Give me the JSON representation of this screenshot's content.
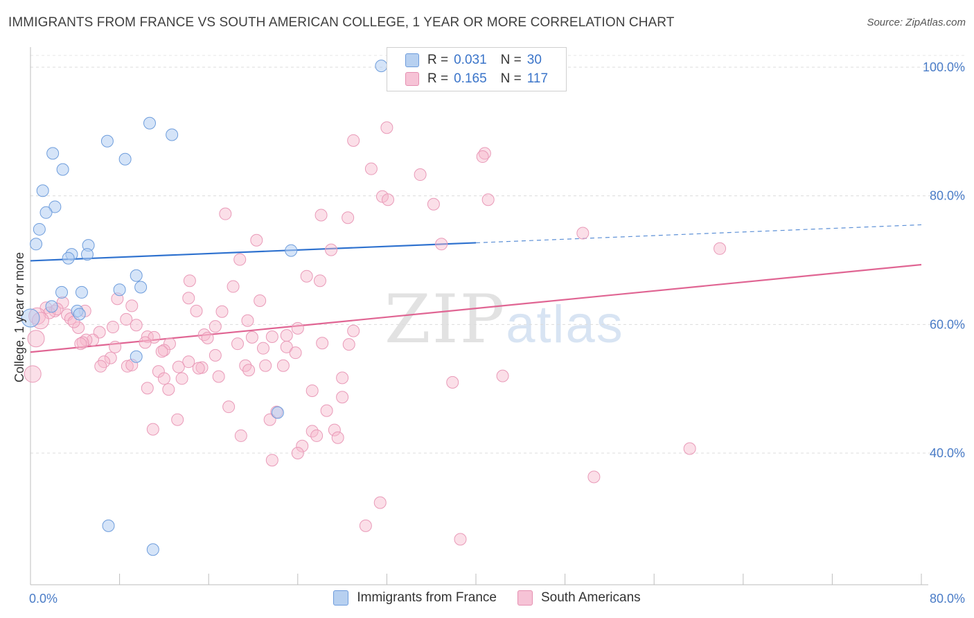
{
  "title": "IMMIGRANTS FROM FRANCE VS SOUTH AMERICAN COLLEGE, 1 YEAR OR MORE CORRELATION CHART",
  "source": "Source: ZipAtlas.com",
  "watermark": {
    "zip": "ZIP",
    "atlas": "atlas"
  },
  "colors": {
    "blue": "#5b8fd6",
    "blue_fill": "#b7d0f0",
    "pink": "#e36d98",
    "pink_fill": "#f6bfd2",
    "tick": "#4a7cc7"
  },
  "legend_top": {
    "rows": [
      {
        "r_label": "R =",
        "r_value": "0.031",
        "n_label": "N =",
        "n_value": "30"
      },
      {
        "r_label": "R =",
        "r_value": "0.165",
        "n_label": "N =",
        "n_value": "117"
      }
    ]
  },
  "legend_bottom": [
    "Immigrants from France",
    "South Americans"
  ],
  "chart_data": {
    "type": "scatter",
    "title": "IMMIGRANTS FROM FRANCE VS SOUTH AMERICAN COLLEGE, 1 YEAR OR MORE CORRELATION CHART",
    "xlabel": "",
    "ylabel": "College, 1 year or more",
    "xlim": [
      0,
      80
    ],
    "ylim": [
      20,
      100
    ],
    "x_tick_labels": [
      "0.0%",
      "80.0%"
    ],
    "y_tick_labels": [
      "100.0%",
      "80.0%",
      "60.0%",
      "40.0%"
    ],
    "y_tick_values": [
      100,
      80,
      60,
      40
    ],
    "series": [
      {
        "name": "Immigrants from France",
        "r": 0.031,
        "n": 30,
        "trend": {
          "x1": 0,
          "y1": 69.9,
          "x2": 40,
          "y2": 72.7,
          "x_dash_end": 80,
          "y_dash_end": 75.5
        },
        "points": [
          [
            31.5,
            100.2
          ],
          [
            10.7,
            91.3
          ],
          [
            12.7,
            89.5
          ],
          [
            6.9,
            88.5
          ],
          [
            2.0,
            86.6
          ],
          [
            8.5,
            85.7
          ],
          [
            2.9,
            84.1
          ],
          [
            1.1,
            80.8
          ],
          [
            2.2,
            78.3
          ],
          [
            1.4,
            77.4
          ],
          [
            0.8,
            74.8
          ],
          [
            0.5,
            72.5
          ],
          [
            5.2,
            72.3
          ],
          [
            23.4,
            71.5
          ],
          [
            3.7,
            70.9
          ],
          [
            3.4,
            70.3
          ],
          [
            5.1,
            70.9
          ],
          [
            9.5,
            67.6
          ],
          [
            9.9,
            65.8
          ],
          [
            8.0,
            65.4
          ],
          [
            2.8,
            65.0
          ],
          [
            4.6,
            65.0
          ],
          [
            4.2,
            62.1
          ],
          [
            4.4,
            61.6
          ],
          [
            0.0,
            61.0
          ],
          [
            9.5,
            55.0
          ],
          [
            22.2,
            46.3
          ],
          [
            7.0,
            28.7
          ],
          [
            11.0,
            25.0
          ],
          [
            1.9,
            62.8
          ]
        ]
      },
      {
        "name": "South Americans",
        "r": 0.165,
        "n": 117,
        "trend": {
          "x1": 0,
          "y1": 55.7,
          "x2": 80,
          "y2": 69.3
        },
        "points": [
          [
            32.0,
            90.6
          ],
          [
            29.0,
            88.6
          ],
          [
            40.8,
            86.6
          ],
          [
            40.6,
            86.1
          ],
          [
            30.6,
            84.2
          ],
          [
            35.0,
            83.3
          ],
          [
            31.6,
            79.9
          ],
          [
            32.1,
            79.4
          ],
          [
            41.1,
            79.4
          ],
          [
            36.2,
            78.7
          ],
          [
            17.5,
            77.2
          ],
          [
            26.1,
            77.0
          ],
          [
            28.5,
            76.6
          ],
          [
            49.6,
            74.2
          ],
          [
            20.3,
            73.1
          ],
          [
            36.9,
            72.5
          ],
          [
            61.9,
            71.8
          ],
          [
            27.0,
            71.6
          ],
          [
            18.8,
            70.1
          ],
          [
            24.8,
            67.5
          ],
          [
            26.0,
            66.8
          ],
          [
            14.3,
            66.8
          ],
          [
            14.2,
            64.1
          ],
          [
            7.8,
            64.0
          ],
          [
            2.9,
            63.4
          ],
          [
            9.1,
            62.9
          ],
          [
            1.4,
            62.6
          ],
          [
            2.2,
            62.1
          ],
          [
            4.9,
            62.1
          ],
          [
            1.7,
            61.8
          ],
          [
            17.2,
            62.0
          ],
          [
            14.9,
            62.1
          ],
          [
            3.3,
            61.5
          ],
          [
            0.6,
            61.3
          ],
          [
            3.6,
            60.9
          ],
          [
            0.9,
            60.6
          ],
          [
            19.5,
            60.6
          ],
          [
            8.6,
            60.8
          ],
          [
            9.5,
            59.9
          ],
          [
            16.6,
            59.7
          ],
          [
            7.4,
            59.6
          ],
          [
            4.3,
            59.5
          ],
          [
            24.0,
            59.4
          ],
          [
            29.0,
            59.0
          ],
          [
            6.2,
            58.8
          ],
          [
            15.6,
            58.4
          ],
          [
            23.0,
            58.3
          ],
          [
            21.7,
            58.1
          ],
          [
            10.5,
            58.1
          ],
          [
            15.9,
            57.9
          ],
          [
            11.1,
            58.0
          ],
          [
            5.6,
            57.6
          ],
          [
            19.9,
            58.0
          ],
          [
            0.5,
            57.8
          ],
          [
            5.0,
            57.6
          ],
          [
            4.7,
            57.2
          ],
          [
            4.5,
            57.0
          ],
          [
            10.3,
            57.2
          ],
          [
            12.5,
            57.0
          ],
          [
            26.2,
            57.1
          ],
          [
            28.6,
            56.9
          ],
          [
            18.6,
            57.0
          ],
          [
            7.6,
            56.5
          ],
          [
            23.0,
            56.5
          ],
          [
            20.9,
            56.3
          ],
          [
            12.0,
            56.0
          ],
          [
            11.8,
            55.8
          ],
          [
            23.8,
            55.6
          ],
          [
            16.6,
            55.2
          ],
          [
            7.2,
            54.8
          ],
          [
            6.6,
            54.2
          ],
          [
            14.2,
            54.2
          ],
          [
            19.3,
            53.6
          ],
          [
            22.7,
            53.6
          ],
          [
            8.7,
            53.5
          ],
          [
            9.1,
            53.7
          ],
          [
            6.3,
            53.5
          ],
          [
            13.3,
            53.4
          ],
          [
            21.1,
            53.6
          ],
          [
            15.4,
            53.3
          ],
          [
            15.1,
            53.2
          ],
          [
            19.6,
            52.9
          ],
          [
            11.5,
            52.7
          ],
          [
            16.9,
            51.9
          ],
          [
            28.0,
            51.7
          ],
          [
            37.9,
            51.0
          ],
          [
            42.4,
            52.0
          ],
          [
            12.0,
            51.6
          ],
          [
            13.6,
            51.6
          ],
          [
            10.5,
            50.1
          ],
          [
            12.4,
            49.9
          ],
          [
            25.3,
            49.7
          ],
          [
            28.0,
            48.7
          ],
          [
            17.8,
            47.2
          ],
          [
            26.6,
            46.6
          ],
          [
            22.1,
            46.4
          ],
          [
            13.2,
            45.2
          ],
          [
            21.5,
            45.2
          ],
          [
            11.0,
            43.7
          ],
          [
            25.3,
            43.4
          ],
          [
            27.3,
            43.6
          ],
          [
            25.7,
            42.7
          ],
          [
            18.9,
            42.7
          ],
          [
            27.6,
            42.4
          ],
          [
            24.4,
            41.1
          ],
          [
            59.2,
            40.7
          ],
          [
            24.0,
            40.0
          ],
          [
            21.7,
            38.9
          ],
          [
            0.2,
            52.3
          ],
          [
            50.6,
            36.3
          ],
          [
            31.4,
            32.3
          ],
          [
            30.1,
            28.7
          ],
          [
            38.6,
            26.6
          ],
          [
            2.4,
            62.4
          ],
          [
            3.9,
            60.4
          ],
          [
            18.2,
            65.9
          ],
          [
            20.6,
            63.7
          ]
        ]
      }
    ]
  }
}
